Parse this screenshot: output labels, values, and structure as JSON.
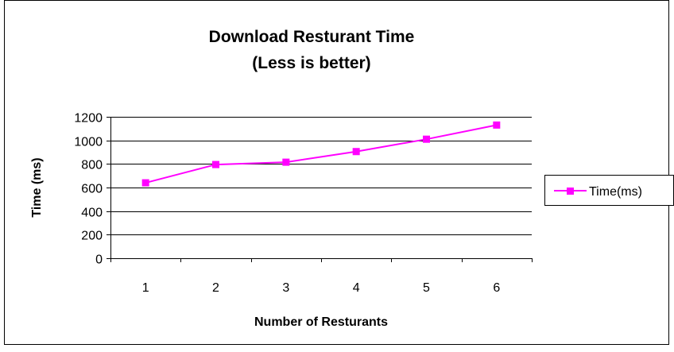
{
  "chart_data": {
    "type": "line",
    "title": "Download Resturant Time",
    "subtitle": "(Less is better)",
    "xlabel": "Number of Resturants",
    "ylabel": "Time (ms)",
    "categories": [
      "1",
      "2",
      "3",
      "4",
      "5",
      "6"
    ],
    "series": [
      {
        "name": "Time(ms)",
        "values": [
          640,
          795,
          815,
          905,
          1010,
          1130
        ],
        "color": "#ff00ff"
      }
    ],
    "y_ticks": [
      "0",
      "200",
      "400",
      "600",
      "800",
      "1000",
      "1200"
    ],
    "ylim": [
      0,
      1200
    ],
    "grid": true,
    "legend": "right",
    "marker": "square"
  }
}
